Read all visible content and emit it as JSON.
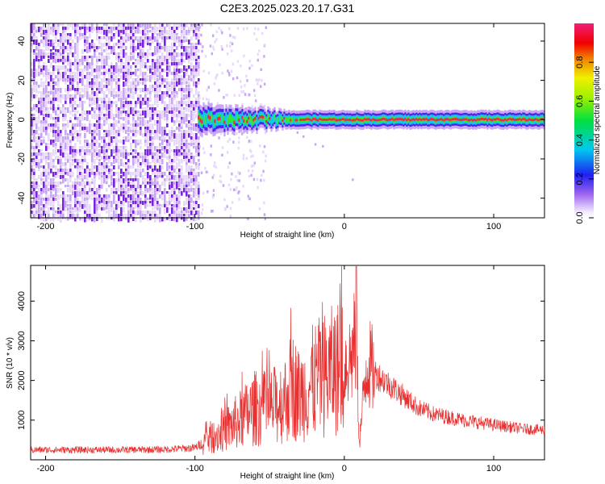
{
  "chart_data": [
    {
      "type": "heatmap",
      "title": "C2E3.2025.023.20.17.G31",
      "xlabel": "Height of straight line (km)",
      "ylabel": "Frequency (Hz)",
      "xlim": [
        -210,
        134
      ],
      "ylim": [
        -50,
        49
      ],
      "x_ticks": [
        -200,
        -100,
        0,
        100
      ],
      "y_ticks": [
        -40,
        -20,
        0,
        20,
        40
      ],
      "colorbar": {
        "label": "Normalized spectral amplitude",
        "range": [
          0,
          1
        ],
        "ticks": [
          0.0,
          0.2,
          0.4,
          0.6,
          0.8
        ]
      },
      "regions": [
        {
          "description": "noise",
          "x_range": [
            -210,
            -98
          ],
          "amplitude": 0.05
        },
        {
          "description": "signal band",
          "x_range": [
            -98,
            134
          ],
          "freq_center": 0,
          "freq_halfwidth": 3
        }
      ],
      "colors": {
        "noise_light": "#e8d8fb",
        "noise_mid": "#c9a6f5",
        "noise_dark": "#7a22e0",
        "band_outer": "#4a1fe6",
        "band_mid": "#18c8e8",
        "band_green": "#3ce83c",
        "band_core": "#e8283c"
      }
    },
    {
      "type": "line",
      "xlabel": "Height of straight line (km)",
      "ylabel": "SNR (10 * v/v)",
      "xlim": [
        -210,
        134
      ],
      "ylim": [
        0,
        4900
      ],
      "x_ticks": [
        -200,
        -100,
        0,
        100
      ],
      "y_ticks": [
        1000,
        2000,
        3000,
        4000
      ],
      "series": [
        {
          "color": "#e83030",
          "x": [
            -210,
            -180,
            -150,
            -120,
            -100,
            -90,
            -80,
            -70,
            -60,
            -50,
            -40,
            -35,
            -30,
            -20,
            -10,
            0,
            5,
            8,
            10,
            15,
            20,
            30,
            40,
            50,
            60,
            80,
            100,
            120,
            134
          ],
          "y": [
            250,
            250,
            250,
            260,
            300,
            550,
            750,
            1000,
            1300,
            1300,
            1500,
            1900,
            1600,
            2000,
            2200,
            2400,
            2600,
            3100,
            400,
            2500,
            2200,
            1900,
            1600,
            1300,
            1150,
            1000,
            880,
            780,
            750
          ]
        }
      ]
    }
  ]
}
